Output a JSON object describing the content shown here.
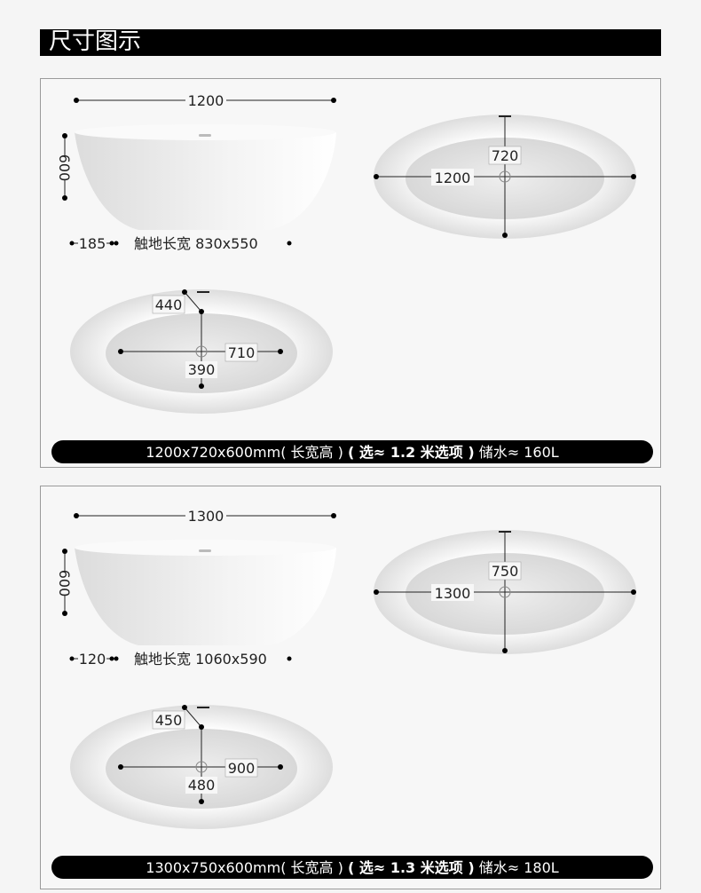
{
  "header": {
    "title": "尺寸图示"
  },
  "panels": [
    {
      "length": "1200",
      "height": "600",
      "base_offset": "185",
      "footprint": "触地长宽 830x550",
      "width": "720",
      "inner_length_label": "1200",
      "drain_offset": "440",
      "inner_half_length": "710",
      "inner_half_width": "390",
      "banner": {
        "dims": "1200x720x600mm( 长宽高 )",
        "option": "( 选≈ 1.2 米选项 )",
        "capacity": "储水≈ 160L"
      }
    },
    {
      "length": "1300",
      "height": "600",
      "base_offset": "120",
      "footprint": "触地长宽 1060x590",
      "width": "750",
      "inner_length_label": "1300",
      "drain_offset": "450",
      "inner_half_length": "900",
      "inner_half_width": "480",
      "banner": {
        "dims": "1300x750x600mm( 长宽高 )",
        "option": "( 选≈ 1.3 米选项 )",
        "capacity": "储水≈ 180L"
      }
    }
  ]
}
